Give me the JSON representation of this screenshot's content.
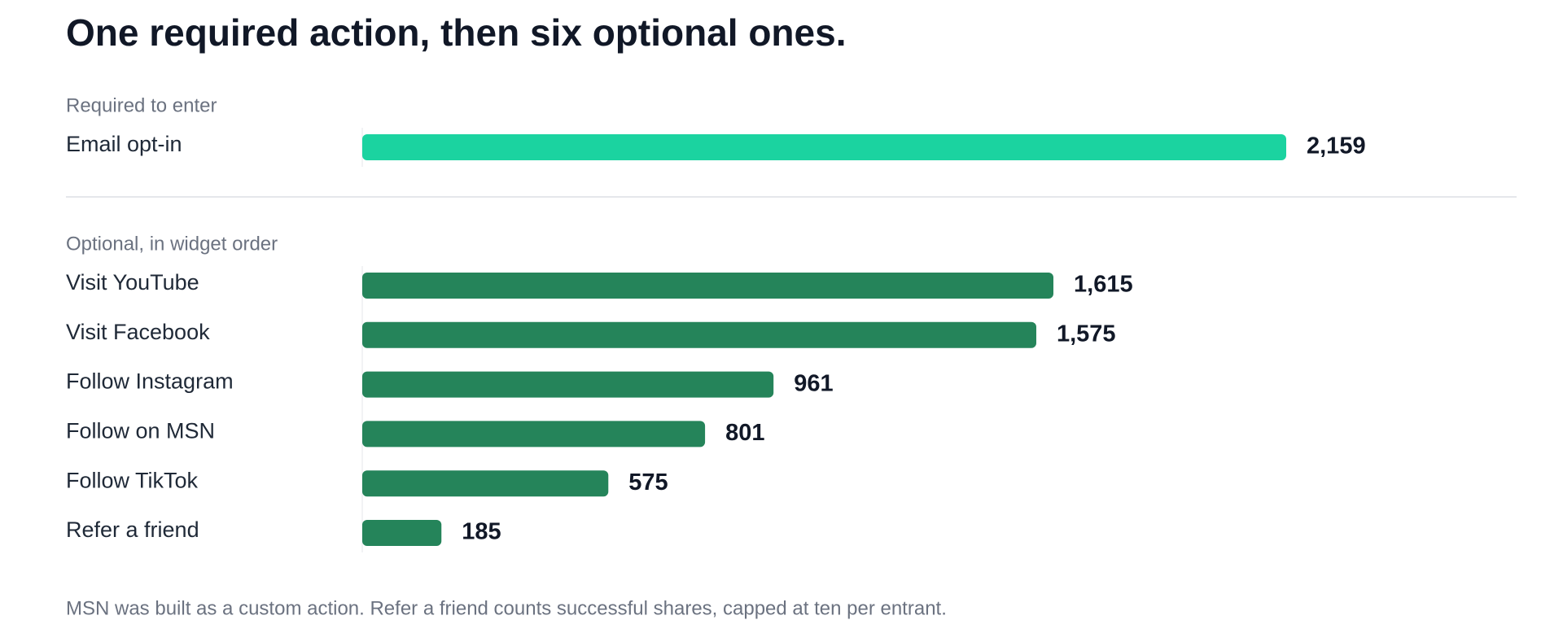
{
  "chart_data": {
    "type": "bar",
    "title": "One required action, then six optional ones.",
    "groups": [
      {
        "label": "Required to enter",
        "color": "#1bd3a0",
        "categories": [
          "Email opt-in"
        ],
        "values": [
          2159
        ],
        "value_labels": [
          "2,159"
        ]
      },
      {
        "label": "Optional, in widget order",
        "color": "#25845a",
        "categories": [
          "Visit YouTube",
          "Visit Facebook",
          "Follow Instagram",
          "Follow on MSN",
          "Follow TikTok",
          "Refer a friend"
        ],
        "values": [
          1615,
          1575,
          961,
          801,
          575,
          185
        ],
        "value_labels": [
          "1,615",
          "1,575",
          "961",
          "801",
          "575",
          "185"
        ]
      }
    ],
    "note": "MSN was built as a custom action. Refer a friend counts successful shares, capped at ten per entrant."
  }
}
